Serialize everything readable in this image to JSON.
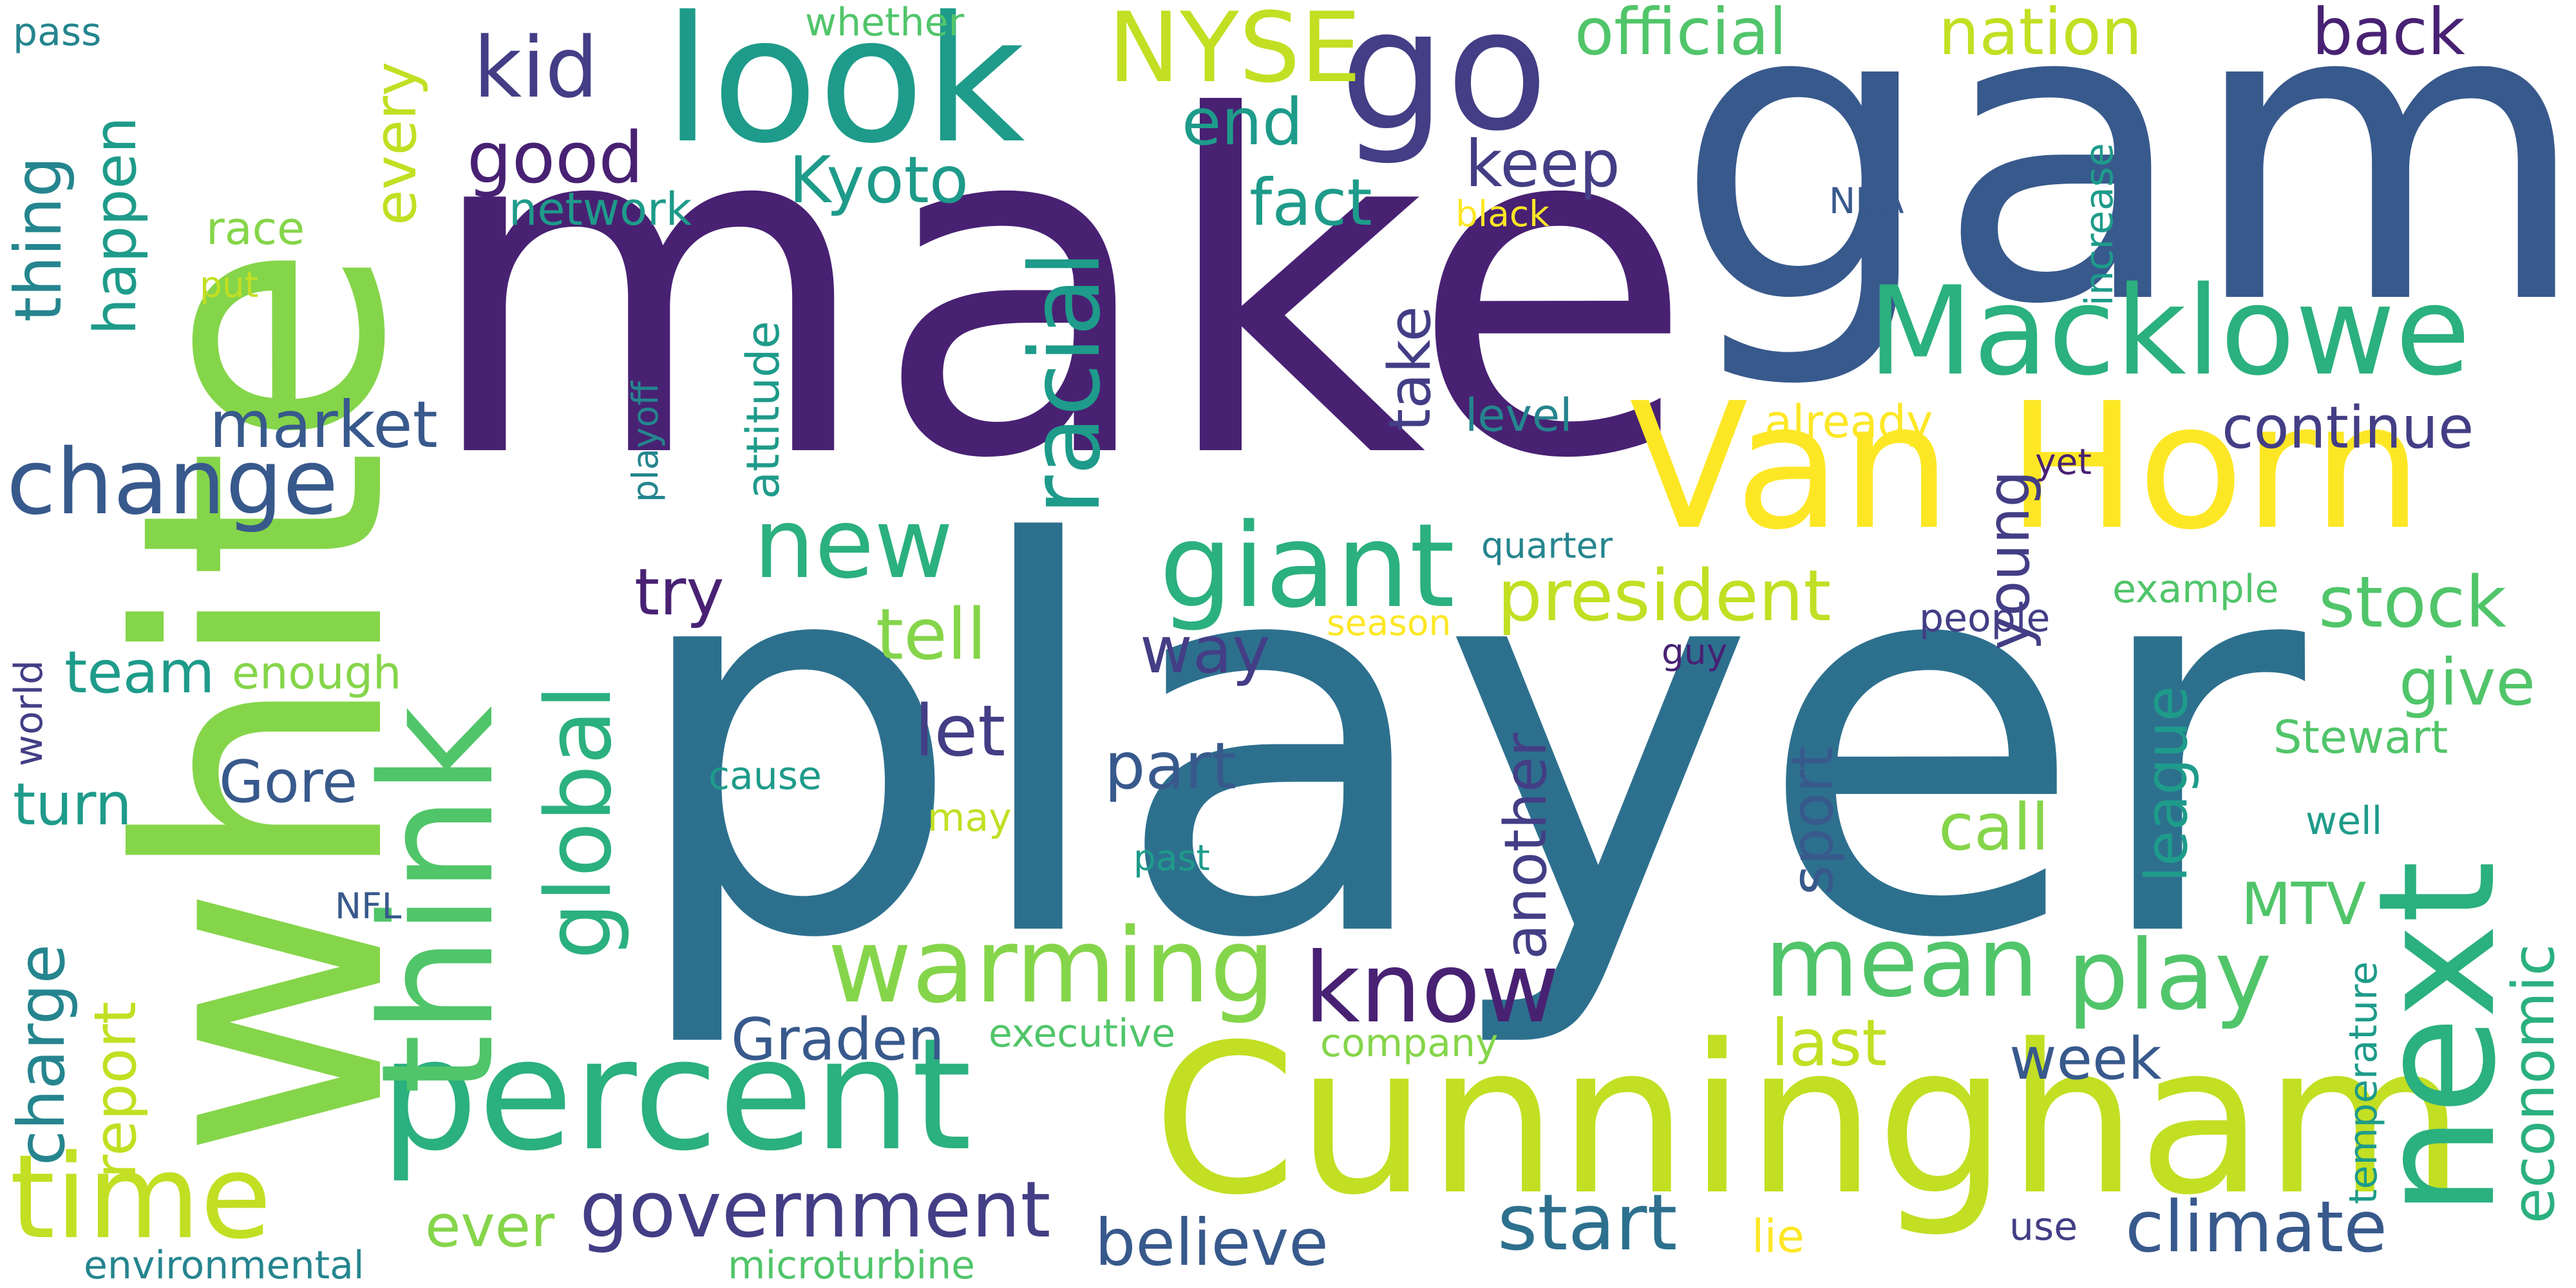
{
  "palette": {
    "deep_purple": "#482173",
    "indigo": "#433E85",
    "slate_blue": "#38598C",
    "steel_blue": "#2D708E",
    "teal_blue": "#25858E",
    "teal": "#1E9B8A",
    "green_teal": "#2BB07F",
    "green": "#51C56A",
    "lime_green": "#85D54A",
    "yellow_green": "#C2DF23",
    "yellow": "#FDE725"
  },
  "words": [
    {
      "id": "make",
      "text": "make",
      "color": "deep_purple",
      "orient": "h"
    },
    {
      "id": "player",
      "text": "player",
      "color": "steel_blue",
      "orient": "h"
    },
    {
      "id": "game",
      "text": "game",
      "color": "slate_blue",
      "orient": "h"
    },
    {
      "id": "white",
      "text": "white",
      "color": "lime_green",
      "orient": "v"
    },
    {
      "id": "cunningham",
      "text": "Cunningham",
      "color": "yellow_green",
      "orient": "h"
    },
    {
      "id": "van-horn",
      "text": "Van Horn",
      "color": "yellow",
      "orient": "h"
    },
    {
      "id": "look",
      "text": "look",
      "color": "teal",
      "orient": "h"
    },
    {
      "id": "percent",
      "text": "percent",
      "color": "green_teal",
      "orient": "h"
    },
    {
      "id": "next",
      "text": "next",
      "color": "green_teal",
      "orient": "v"
    },
    {
      "id": "think",
      "text": "think",
      "color": "green",
      "orient": "v"
    },
    {
      "id": "macklowe",
      "text": "Macklowe",
      "color": "green_teal",
      "orient": "h"
    },
    {
      "id": "go",
      "text": "go",
      "color": "indigo",
      "orient": "h"
    },
    {
      "id": "time",
      "text": "time",
      "color": "yellow_green",
      "orient": "h"
    },
    {
      "id": "giant",
      "text": "giant",
      "color": "green_teal",
      "orient": "h"
    },
    {
      "id": "racial",
      "text": "racial",
      "color": "teal",
      "orient": "v"
    },
    {
      "id": "nyse",
      "text": "NYSE",
      "color": "yellow_green",
      "orient": "h"
    },
    {
      "id": "change",
      "text": "change",
      "color": "slate_blue",
      "orient": "h"
    },
    {
      "id": "warming",
      "text": "warming",
      "color": "lime_green",
      "orient": "h"
    },
    {
      "id": "know",
      "text": "know",
      "color": "deep_purple",
      "orient": "h"
    },
    {
      "id": "government",
      "text": "government",
      "color": "indigo",
      "orient": "h"
    },
    {
      "id": "global",
      "text": "global",
      "color": "green_teal",
      "orient": "v"
    },
    {
      "id": "new",
      "text": "new",
      "color": "green_teal",
      "orient": "h"
    },
    {
      "id": "play",
      "text": "play",
      "color": "green",
      "orient": "h"
    },
    {
      "id": "mean",
      "text": "mean",
      "color": "green",
      "orient": "h"
    },
    {
      "id": "climate",
      "text": "climate",
      "color": "slate_blue",
      "orient": "h"
    },
    {
      "id": "start",
      "text": "start",
      "color": "steel_blue",
      "orient": "h"
    },
    {
      "id": "president",
      "text": "president",
      "color": "yellow_green",
      "orient": "h"
    },
    {
      "id": "stock",
      "text": "stock",
      "color": "green",
      "orient": "h"
    },
    {
      "id": "kid",
      "text": "kid",
      "color": "indigo",
      "orient": "h"
    },
    {
      "id": "official",
      "text": "official",
      "color": "green",
      "orient": "h"
    },
    {
      "id": "nation",
      "text": "nation",
      "color": "yellow_green",
      "orient": "h"
    },
    {
      "id": "back",
      "text": "back",
      "color": "deep_purple",
      "orient": "h"
    },
    {
      "id": "kyoto",
      "text": "Kyoto",
      "color": "teal",
      "orient": "h"
    },
    {
      "id": "good",
      "text": "good",
      "color": "deep_purple",
      "orient": "h"
    },
    {
      "id": "end",
      "text": "end",
      "color": "teal",
      "orient": "h"
    },
    {
      "id": "fact",
      "text": "fact",
      "color": "teal",
      "orient": "h"
    },
    {
      "id": "keep",
      "text": "keep",
      "color": "indigo",
      "orient": "h"
    },
    {
      "id": "market",
      "text": "market",
      "color": "slate_blue",
      "orient": "h"
    },
    {
      "id": "take",
      "text": "take",
      "color": "indigo",
      "orient": "v"
    },
    {
      "id": "continue",
      "text": "continue",
      "color": "indigo",
      "orient": "h"
    },
    {
      "id": "young",
      "text": "young",
      "color": "indigo",
      "orient": "v"
    },
    {
      "id": "tell",
      "text": "tell",
      "color": "lime_green",
      "orient": "h"
    },
    {
      "id": "way",
      "text": "way",
      "color": "indigo",
      "orient": "h"
    },
    {
      "id": "let",
      "text": "let",
      "color": "indigo",
      "orient": "h"
    },
    {
      "id": "part",
      "text": "part",
      "color": "slate_blue",
      "orient": "h"
    },
    {
      "id": "try",
      "text": "try",
      "color": "deep_purple",
      "orient": "h"
    },
    {
      "id": "team",
      "text": "team",
      "color": "teal",
      "orient": "h"
    },
    {
      "id": "gore",
      "text": "Gore",
      "color": "slate_blue",
      "orient": "h"
    },
    {
      "id": "turn",
      "text": "turn",
      "color": "teal",
      "orient": "h"
    },
    {
      "id": "give",
      "text": "give",
      "color": "green",
      "orient": "h"
    },
    {
      "id": "league",
      "text": "league",
      "color": "teal",
      "orient": "v"
    },
    {
      "id": "another",
      "text": "another",
      "color": "indigo",
      "orient": "v"
    },
    {
      "id": "sport",
      "text": "sport",
      "color": "slate_blue",
      "orient": "v"
    },
    {
      "id": "call",
      "text": "call",
      "color": "lime_green",
      "orient": "h"
    },
    {
      "id": "mtv",
      "text": "MTV",
      "color": "green",
      "orient": "h"
    },
    {
      "id": "graden",
      "text": "Graden",
      "color": "slate_blue",
      "orient": "h"
    },
    {
      "id": "last",
      "text": "last",
      "color": "yellow_green",
      "orient": "h"
    },
    {
      "id": "week",
      "text": "week",
      "color": "slate_blue",
      "orient": "h"
    },
    {
      "id": "believe",
      "text": "believe",
      "color": "slate_blue",
      "orient": "h"
    },
    {
      "id": "ever",
      "text": "ever",
      "color": "lime_green",
      "orient": "h"
    },
    {
      "id": "economic",
      "text": "economic",
      "color": "green_teal",
      "orient": "v"
    },
    {
      "id": "charge",
      "text": "charge",
      "color": "teal_blue",
      "orient": "v"
    },
    {
      "id": "report",
      "text": "report",
      "color": "yellow_green",
      "orient": "v"
    },
    {
      "id": "happen",
      "text": "happen",
      "color": "teal",
      "orient": "v"
    },
    {
      "id": "every",
      "text": "every",
      "color": "yellow_green",
      "orient": "v"
    },
    {
      "id": "thing",
      "text": "thing",
      "color": "teal_blue",
      "orient": "v"
    },
    {
      "id": "network",
      "text": "network",
      "color": "teal",
      "orient": "h"
    },
    {
      "id": "stewart",
      "text": "Stewart",
      "color": "green",
      "orient": "h"
    },
    {
      "id": "enough",
      "text": "enough",
      "color": "lime_green",
      "orient": "h"
    },
    {
      "id": "level",
      "text": "level",
      "color": "teal_blue",
      "orient": "h"
    },
    {
      "id": "already",
      "text": "already",
      "color": "yellow",
      "orient": "h"
    },
    {
      "id": "attitude",
      "text": "attitude",
      "color": "teal",
      "orient": "v"
    },
    {
      "id": "race",
      "text": "race",
      "color": "lime_green",
      "orient": "h"
    },
    {
      "id": "increase",
      "text": "increase",
      "color": "teal",
      "orient": "v"
    },
    {
      "id": "pass",
      "text": "pass",
      "color": "teal_blue",
      "orient": "h"
    },
    {
      "id": "whether",
      "text": "whether",
      "color": "green",
      "orient": "h"
    },
    {
      "id": "world",
      "text": "world",
      "color": "indigo",
      "orient": "v"
    },
    {
      "id": "example",
      "text": "example",
      "color": "green",
      "orient": "h"
    },
    {
      "id": "well",
      "text": "well",
      "color": "teal",
      "orient": "h"
    },
    {
      "id": "may",
      "text": "may",
      "color": "yellow_green",
      "orient": "h"
    },
    {
      "id": "cause",
      "text": "cause",
      "color": "teal",
      "orient": "h"
    },
    {
      "id": "executive",
      "text": "executive",
      "color": "green",
      "orient": "h"
    },
    {
      "id": "company",
      "text": "company",
      "color": "lime_green",
      "orient": "h"
    },
    {
      "id": "temperature",
      "text": "temperature",
      "color": "teal",
      "orient": "v"
    },
    {
      "id": "environmental",
      "text": "environmental",
      "color": "teal_blue",
      "orient": "h"
    },
    {
      "id": "microturbine",
      "text": "microturbine",
      "color": "green",
      "orient": "h"
    },
    {
      "id": "lie",
      "text": "lie",
      "color": "yellow",
      "orient": "h"
    },
    {
      "id": "use",
      "text": "use",
      "color": "indigo",
      "orient": "h"
    },
    {
      "id": "people",
      "text": "people",
      "color": "indigo",
      "orient": "h"
    },
    {
      "id": "quarter",
      "text": "quarter",
      "color": "teal_blue",
      "orient": "h"
    },
    {
      "id": "playoff",
      "text": "playoff",
      "color": "teal_blue",
      "orient": "v"
    },
    {
      "id": "black",
      "text": "black",
      "color": "yellow",
      "orient": "h"
    },
    {
      "id": "put",
      "text": "put",
      "color": "yellow_green",
      "orient": "h"
    },
    {
      "id": "season",
      "text": "season",
      "color": "yellow",
      "orient": "h"
    },
    {
      "id": "yet",
      "text": "yet",
      "color": "deep_purple",
      "orient": "h"
    },
    {
      "id": "guy",
      "text": "guy",
      "color": "deep_purple",
      "orient": "h"
    },
    {
      "id": "nba",
      "text": "NBA",
      "color": "slate_blue",
      "orient": "h"
    },
    {
      "id": "nfl",
      "text": "NFL",
      "color": "slate_blue",
      "orient": "h"
    },
    {
      "id": "past",
      "text": "past",
      "color": "teal",
      "orient": "h"
    }
  ]
}
